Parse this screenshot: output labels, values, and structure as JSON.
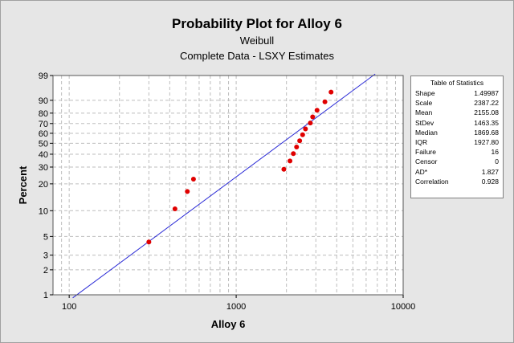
{
  "chart_data": {
    "type": "scatter",
    "title": "Probability Plot for Alloy 6",
    "subtitle_lines": [
      "Weibull",
      "Complete Data - LSXY Estimates"
    ],
    "xlabel": "Alloy 6",
    "ylabel": "Percent",
    "x_scale": "log",
    "y_scale": "weibull-probability",
    "xlim": [
      80,
      10000
    ],
    "ylim": [
      1,
      99
    ],
    "x_ticks": [
      {
        "value": 100,
        "label": "100"
      },
      {
        "value": 1000,
        "label": "1000"
      },
      {
        "value": 10000,
        "label": "10000"
      }
    ],
    "y_ticks": [
      {
        "value": 1,
        "label": "1"
      },
      {
        "value": 2,
        "label": "2"
      },
      {
        "value": 3,
        "label": "3"
      },
      {
        "value": 5,
        "label": "5"
      },
      {
        "value": 10,
        "label": "10"
      },
      {
        "value": 20,
        "label": "20"
      },
      {
        "value": 30,
        "label": "30"
      },
      {
        "value": 40,
        "label": "40"
      },
      {
        "value": 50,
        "label": "50"
      },
      {
        "value": 60,
        "label": "60"
      },
      {
        "value": 70,
        "label": "70"
      },
      {
        "value": 80,
        "label": "80"
      },
      {
        "value": 90,
        "label": "90"
      },
      {
        "value": 99,
        "label": "99"
      }
    ],
    "grid": true,
    "points": [
      {
        "x": 300,
        "y": 4.3
      },
      {
        "x": 430,
        "y": 10.5
      },
      {
        "x": 510,
        "y": 16.5
      },
      {
        "x": 555,
        "y": 22.5
      },
      {
        "x": 1930,
        "y": 28.5
      },
      {
        "x": 2100,
        "y": 34.5
      },
      {
        "x": 2200,
        "y": 40.5
      },
      {
        "x": 2300,
        "y": 46.5
      },
      {
        "x": 2400,
        "y": 52.5
      },
      {
        "x": 2500,
        "y": 58.5
      },
      {
        "x": 2600,
        "y": 64.5
      },
      {
        "x": 2780,
        "y": 70.5
      },
      {
        "x": 2870,
        "y": 76.5
      },
      {
        "x": 3050,
        "y": 82.5
      },
      {
        "x": 3400,
        "y": 89
      },
      {
        "x": 3700,
        "y": 94.5
      }
    ],
    "fit_line": {
      "shape": 1.49987,
      "scale": 2387.22,
      "x_range": [
        105,
        6800
      ]
    },
    "point_color": "#e00000",
    "line_color": "#2b2bd6"
  },
  "stats_table": {
    "header": "Table of Statistics",
    "rows": [
      {
        "label": "Shape",
        "value": "1.49987"
      },
      {
        "label": "Scale",
        "value": "2387.22"
      },
      {
        "label": "Mean",
        "value": "2155.08"
      },
      {
        "label": "StDev",
        "value": "1463.35"
      },
      {
        "label": "Median",
        "value": "1869.68"
      },
      {
        "label": "IQR",
        "value": "1927.80"
      },
      {
        "label": "Failure",
        "value": "16"
      },
      {
        "label": "Censor",
        "value": "0"
      },
      {
        "label": "AD*",
        "value": "1.827"
      },
      {
        "label": "Correlation",
        "value": "0.928"
      }
    ]
  }
}
